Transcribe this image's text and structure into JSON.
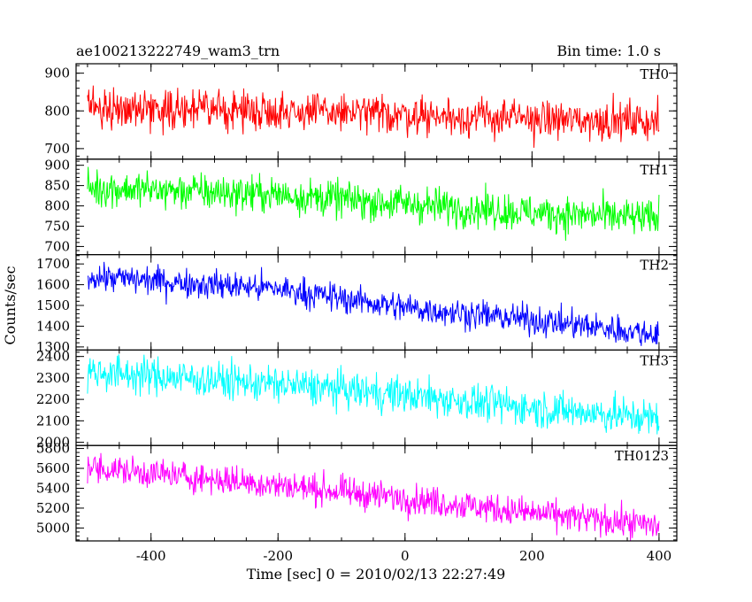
{
  "title_left": "ae100213222749_wam3_trn",
  "title_right": "Bin time: 1.0 s",
  "chart_data": {
    "type": "line",
    "xlabel": "Time [sec] 0 = 2010/02/13 22:27:49",
    "ylabel": "Counts/sec",
    "xlim": [
      -518,
      428
    ],
    "xticks": [
      -400,
      -200,
      0,
      200,
      400
    ],
    "x_range": [
      -500,
      400
    ],
    "bin_time": 1.0,
    "panels": [
      {
        "name": "TH0",
        "color": "#ff0000",
        "ylim": [
          672,
          925
        ],
        "yticks": [
          700,
          800,
          900
        ],
        "trend": [
          [
            -500,
            810
          ],
          [
            -200,
            800
          ],
          [
            0,
            790
          ],
          [
            200,
            778
          ],
          [
            400,
            772
          ]
        ],
        "noise": 50
      },
      {
        "name": "TH1",
        "color": "#00ff00",
        "ylim": [
          680,
          915
        ],
        "yticks": [
          700,
          750,
          800,
          850,
          900
        ],
        "trend": [
          [
            -500,
            845
          ],
          [
            -200,
            828
          ],
          [
            0,
            805
          ],
          [
            200,
            783
          ],
          [
            400,
            768
          ]
        ],
        "noise": 45
      },
      {
        "name": "TH2",
        "color": "#0000ff",
        "ylim": [
          1285,
          1745
        ],
        "yticks": [
          1300,
          1400,
          1500,
          1600,
          1700
        ],
        "trend": [
          [
            -500,
            1640
          ],
          [
            -200,
            1580
          ],
          [
            0,
            1490
          ],
          [
            200,
            1430
          ],
          [
            400,
            1360
          ]
        ],
        "noise": 70
      },
      {
        "name": "TH3",
        "color": "#00ffff",
        "ylim": [
          1985,
          2430
        ],
        "yticks": [
          2000,
          2100,
          2200,
          2300,
          2400
        ],
        "trend": [
          [
            -500,
            2330
          ],
          [
            -200,
            2270
          ],
          [
            0,
            2220
          ],
          [
            200,
            2160
          ],
          [
            400,
            2110
          ]
        ],
        "noise": 85
      },
      {
        "name": "TH0123",
        "color": "#ff00ff",
        "ylim": [
          4870,
          5830
        ],
        "yticks": [
          5000,
          5200,
          5400,
          5600,
          5800
        ],
        "trend": [
          [
            -500,
            5610
          ],
          [
            -200,
            5430
          ],
          [
            0,
            5300
          ],
          [
            200,
            5150
          ],
          [
            400,
            5020
          ]
        ],
        "noise": 150
      }
    ]
  }
}
